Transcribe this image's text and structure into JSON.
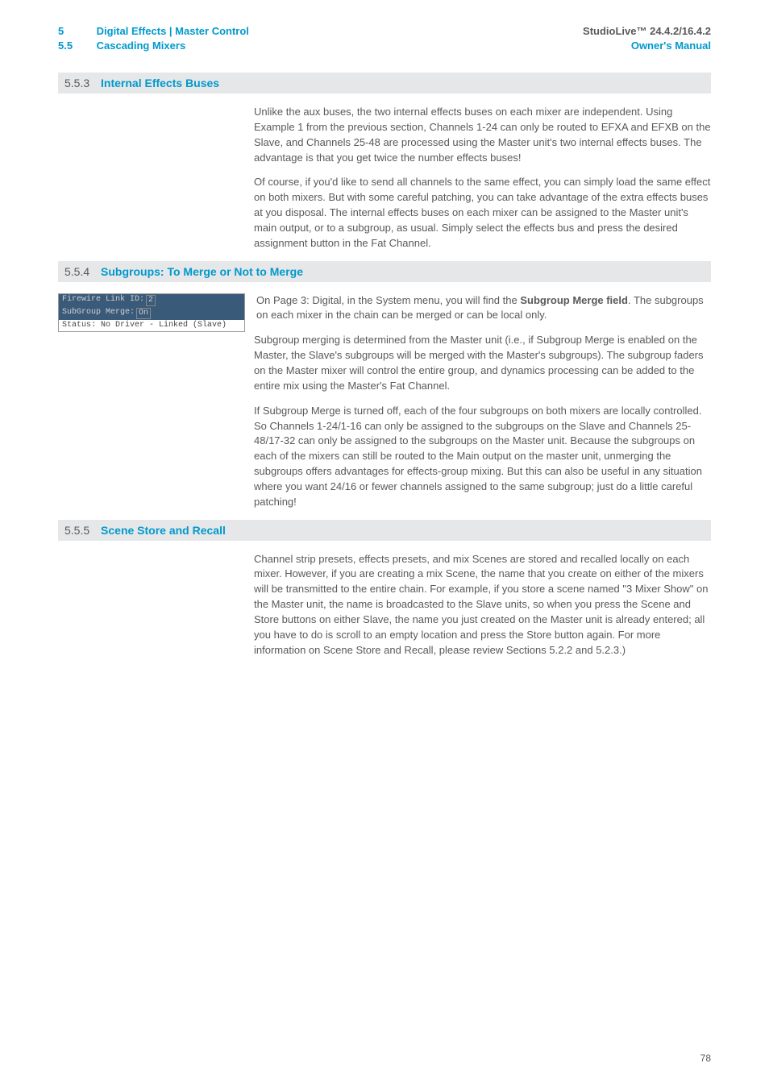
{
  "header": {
    "left_num1": "5",
    "left_txt1": "Digital Effects | Master Control",
    "left_num2": "5.5",
    "left_txt2": "Cascading Mixers",
    "right_line1": "StudioLive™ 24.4.2/16.4.2",
    "right_line2": "Owner's Manual"
  },
  "sections": [
    {
      "num": "5.5.3",
      "title": "Internal Effects Buses",
      "paras": [
        "Unlike the aux buses, the two internal effects buses on each mixer are independent. Using Example 1 from the previous section, Channels 1-24 can only be routed to EFXA and EFXB on the Slave, and Channels 25-48 are processed using the Master unit's two internal effects buses. The advantage is that you get twice the number effects buses!",
        "Of course, if you'd like to send all channels to the same effect, you can simply load the same effect on both mixers. But with some careful patching, you can take advantage of the extra effects buses at you disposal. The internal effects buses on each mixer can be assigned to the Master unit's main output, or to a subgroup, as usual. Simply select the effects bus and press the desired assignment button in the Fat Channel."
      ]
    },
    {
      "num": "5.5.4",
      "title": "Subgroups: To Merge or Not to Merge",
      "image": {
        "row1_a": "Firewire Link ID:",
        "row1_b": "2",
        "row2_a": "SubGroup Merge:",
        "row2_b": "On",
        "row3": "Status:  No Driver - Linked (Slave)"
      },
      "para_beside_pre": "On Page 3: Digital, in the System menu, you will find the ",
      "para_beside_bold": "Subgroup Merge field",
      "para_beside_post": ". The subgroups on each mixer in the chain can be merged or can be local only.",
      "paras": [
        "Subgroup merging is determined from the Master unit (i.e., if Subgroup Merge is enabled on the Master, the Slave's subgroups will be merged with the Master's subgroups). The subgroup faders on the Master mixer will control the entire group, and dynamics processing can be added to the entire mix using the Master's Fat Channel.",
        "If Subgroup Merge is turned off, each of the four subgroups on both mixers are locally controlled. So Channels 1-24/1-16 can only be assigned to the subgroups on the Slave and Channels 25-48/17-32 can only be assigned to the subgroups on the Master unit. Because the subgroups on each of the mixers can still be routed to the Main output on the master unit, unmerging the subgroups offers advantages for effects-group mixing. But this can also be useful in any situation where you want 24/16 or fewer channels assigned to the same subgroup; just do a little careful patching!"
      ]
    },
    {
      "num": "5.5.5",
      "title": "Scene Store and Recall",
      "paras": [
        "Channel strip presets, effects presets, and mix Scenes are stored and recalled locally on each mixer. However, if you are creating a mix Scene, the name that you create on either of the mixers will be transmitted to the entire chain. For example, if you store a scene named \"3 Mixer Show\" on the Master unit, the name is broadcasted to the Slave units, so when you press the Scene and Store buttons on either Slave, the name you just created on the Master unit is already entered; all you have to do is scroll to an empty location and press the Store button again. For more information on Scene Store and Recall, please review Sections 5.2.2 and 5.2.3.)"
      ]
    }
  ],
  "page_num": "78"
}
